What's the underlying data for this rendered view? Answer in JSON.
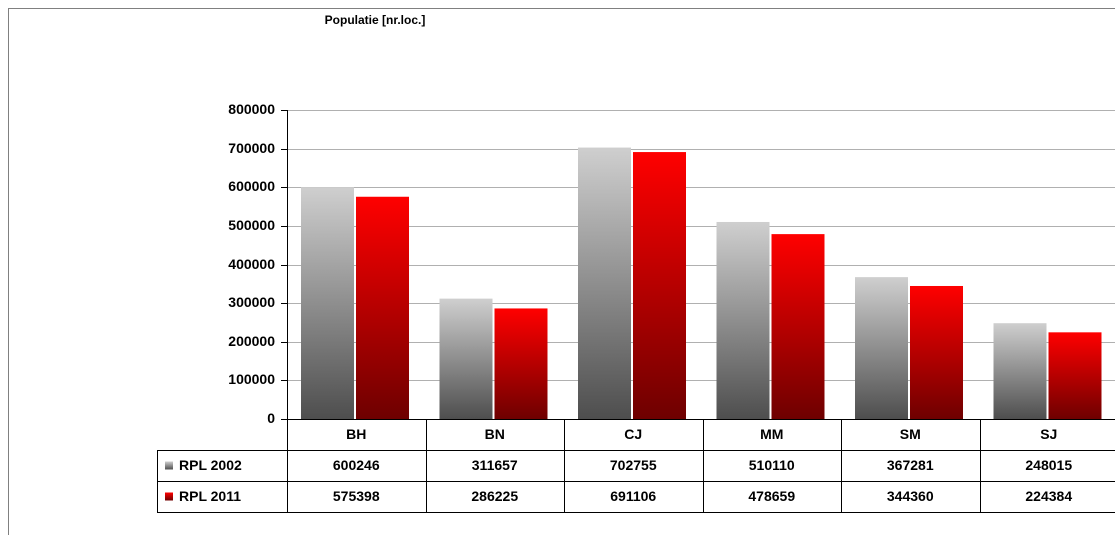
{
  "chart_data": {
    "type": "bar",
    "title": "Populatie [nr.loc.]",
    "categories": [
      "BH",
      "BN",
      "CJ",
      "MM",
      "SM",
      "SJ"
    ],
    "series": [
      {
        "name": "RPL 2002",
        "color": "#9a9a9a",
        "values": [
          600246,
          311657,
          702755,
          510110,
          367281,
          248015
        ]
      },
      {
        "name": "RPL 2011",
        "color": "#e00000",
        "values": [
          575398,
          286225,
          691106,
          478659,
          344360,
          224384
        ]
      }
    ],
    "ylim": [
      0,
      800000
    ],
    "yticks": [
      0,
      100000,
      200000,
      300000,
      400000,
      500000,
      600000,
      700000,
      800000
    ],
    "grid": true
  }
}
